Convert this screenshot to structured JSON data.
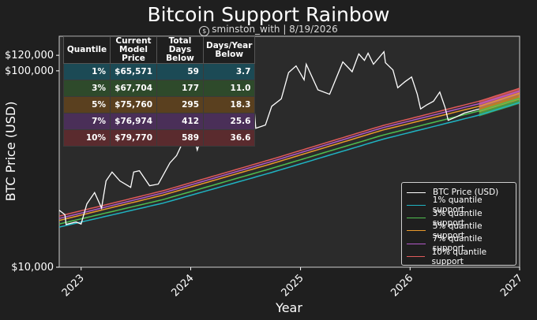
{
  "chart_data": {
    "type": "line",
    "title": "Bitcoin Support Rainbow",
    "subtitle": "sminston_with | 8/19/2026",
    "xlabel": "Year",
    "ylabel": "BTC Price (USD)",
    "yscale": "log",
    "ylim": [
      10000,
      150000
    ],
    "xlim": [
      "2022-10-20",
      "2027-01-01"
    ],
    "yticks": [
      "$10,000",
      "$100,000",
      "$120,000"
    ],
    "xticks": [
      "2023",
      "2024",
      "2025",
      "2026",
      "2027"
    ],
    "legend_position": "lower-right",
    "grid": false,
    "series": [
      {
        "name": "BTC Price (USD)",
        "color": "#ffffff",
        "points": [
          [
            "2022-10-20",
            19500
          ],
          [
            "2022-11-08",
            18500
          ],
          [
            "2022-11-12",
            16500
          ],
          [
            "2022-12-15",
            17000
          ],
          [
            "2023-01-01",
            16600
          ],
          [
            "2023-01-20",
            21000
          ],
          [
            "2023-02-15",
            24000
          ],
          [
            "2023-03-10",
            20000
          ],
          [
            "2023-03-25",
            27500
          ],
          [
            "2023-04-14",
            30500
          ],
          [
            "2023-05-10",
            27500
          ],
          [
            "2023-06-15",
            25500
          ],
          [
            "2023-06-25",
            30500
          ],
          [
            "2023-07-14",
            31000
          ],
          [
            "2023-08-17",
            26000
          ],
          [
            "2023-09-15",
            26500
          ],
          [
            "2023-10-24",
            34000
          ],
          [
            "2023-11-15",
            37000
          ],
          [
            "2023-12-08",
            44000
          ],
          [
            "2024-01-11",
            46500
          ],
          [
            "2024-01-23",
            39500
          ],
          [
            "2024-02-15",
            51500
          ],
          [
            "2024-03-14",
            73000
          ],
          [
            "2024-04-17",
            61000
          ],
          [
            "2024-05-21",
            71000
          ],
          [
            "2024-07-05",
            54000
          ],
          [
            "2024-07-29",
            69000
          ],
          [
            "2024-08-05",
            51000
          ],
          [
            "2024-09-06",
            53000
          ],
          [
            "2024-09-27",
            66000
          ],
          [
            "2024-10-29",
            72000
          ],
          [
            "2024-11-22",
            98000
          ],
          [
            "2024-12-17",
            106000
          ],
          [
            "2025-01-13",
            90000
          ],
          [
            "2025-01-20",
            108000
          ],
          [
            "2025-02-28",
            80000
          ],
          [
            "2025-04-08",
            76000
          ],
          [
            "2025-05-22",
            111000
          ],
          [
            "2025-06-22",
            99000
          ],
          [
            "2025-07-14",
            122000
          ],
          [
            "2025-08-02",
            113000
          ],
          [
            "2025-08-14",
            123000
          ],
          [
            "2025-09-01",
            108000
          ],
          [
            "2025-10-06",
            125000
          ],
          [
            "2025-10-11",
            110000
          ],
          [
            "2025-11-05",
            101000
          ],
          [
            "2025-11-21",
            82000
          ],
          [
            "2025-12-15",
            88000
          ],
          [
            "2026-01-06",
            93000
          ],
          [
            "2026-01-25",
            76000
          ],
          [
            "2026-02-05",
            64000
          ],
          [
            "2026-02-25",
            67000
          ],
          [
            "2026-03-20",
            70000
          ],
          [
            "2026-04-10",
            78000
          ],
          [
            "2026-04-28",
            65000
          ],
          [
            "2026-05-08",
            56000
          ],
          [
            "2026-06-01",
            58000
          ],
          [
            "2026-07-01",
            61000
          ],
          [
            "2026-08-19",
            64000
          ]
        ]
      },
      {
        "name": "1% quantile support",
        "color": "#1fb3c2",
        "points": [
          [
            "2022-10-20",
            16000
          ],
          [
            "2023-10-01",
            21200
          ],
          [
            "2024-10-01",
            30500
          ],
          [
            "2025-10-01",
            44800
          ],
          [
            "2026-08-19",
            59500
          ],
          [
            "2027-01-01",
            69000
          ]
        ]
      },
      {
        "name": "3% quantile support",
        "color": "#4fbf4f",
        "points": [
          [
            "2022-10-20",
            16600
          ],
          [
            "2023-10-01",
            22100
          ],
          [
            "2024-10-01",
            32000
          ],
          [
            "2025-10-01",
            47000
          ],
          [
            "2026-08-19",
            62500
          ],
          [
            "2027-01-01",
            72500
          ]
        ]
      },
      {
        "name": "5% quantile support",
        "color": "#e89a2c",
        "points": [
          [
            "2022-10-20",
            17300
          ],
          [
            "2023-10-01",
            23300
          ],
          [
            "2024-10-01",
            33800
          ],
          [
            "2025-10-01",
            49900
          ],
          [
            "2026-08-19",
            66000
          ],
          [
            "2027-01-01",
            77000
          ]
        ]
      },
      {
        "name": "7% quantile support",
        "color": "#b259c9",
        "points": [
          [
            "2022-10-20",
            17700
          ],
          [
            "2023-10-01",
            23900
          ],
          [
            "2024-10-01",
            34700
          ],
          [
            "2025-10-01",
            51300
          ],
          [
            "2026-08-19",
            68000
          ],
          [
            "2027-01-01",
            79000
          ]
        ]
      },
      {
        "name": "10% quantile support",
        "color": "#e05a5a",
        "points": [
          [
            "2022-10-20",
            18200
          ],
          [
            "2023-10-01",
            24500
          ],
          [
            "2024-10-01",
            35600
          ],
          [
            "2025-10-01",
            52600
          ],
          [
            "2026-08-19",
            70000
          ],
          [
            "2027-01-01",
            81500
          ]
        ]
      }
    ],
    "table": {
      "headers": [
        "Quantile",
        "Current Model Price",
        "Total Days Below",
        "Days/Year Below"
      ],
      "rows": [
        {
          "quantile": "1%",
          "price": "$65,571",
          "days": "59",
          "per_year": "3.7",
          "color": "#1c4a55"
        },
        {
          "quantile": "3%",
          "price": "$67,704",
          "days": "177",
          "per_year": "11.0",
          "color": "#2e4a2b"
        },
        {
          "quantile": "5%",
          "price": "$75,760",
          "days": "295",
          "per_year": "18.3",
          "color": "#5a401f"
        },
        {
          "quantile": "7%",
          "price": "$76,974",
          "days": "412",
          "per_year": "25.6",
          "color": "#4a2f58"
        },
        {
          "quantile": "10%",
          "price": "$79,770",
          "days": "589",
          "per_year": "36.6",
          "color": "#5a2b2e"
        }
      ]
    }
  }
}
